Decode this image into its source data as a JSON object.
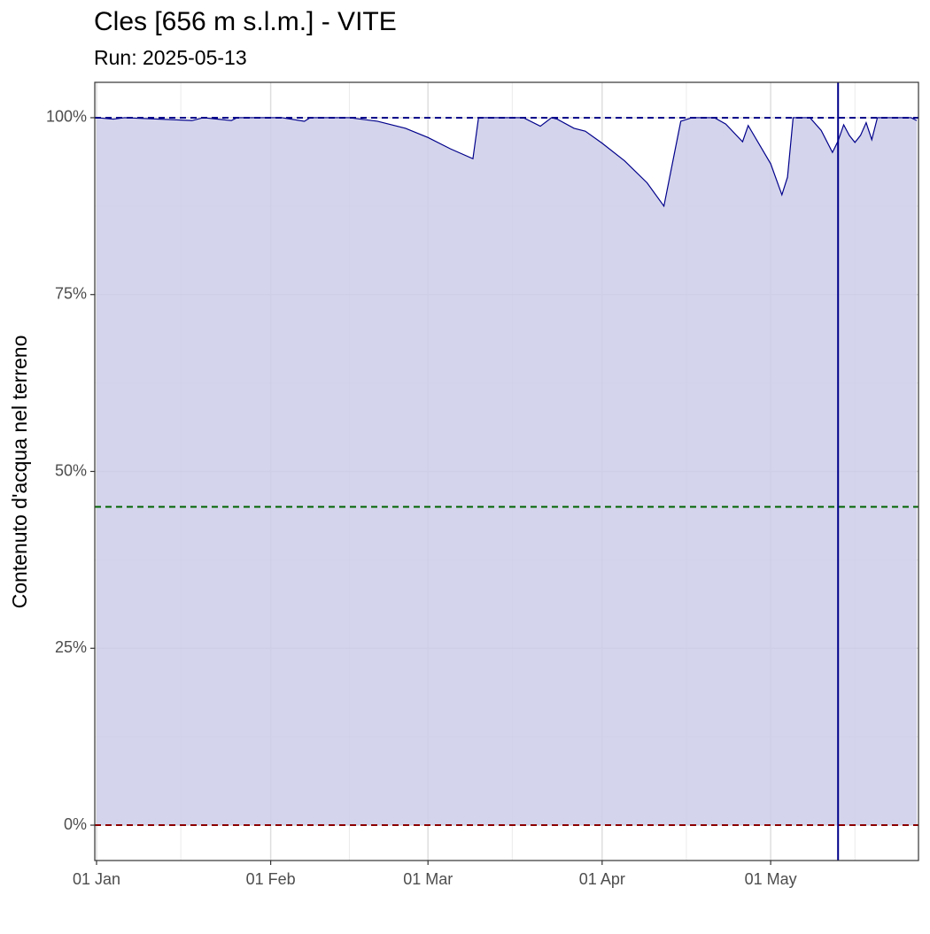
{
  "chart_data": {
    "type": "area",
    "title": "Cles [656 m s.l.m.] - VITE",
    "subtitle": "Run: 2025-05-13",
    "y_label": "Contenuto d'acqua nel terreno",
    "x": [
      "01 Jan",
      "04 Jan",
      "06 Jan",
      "18 Jan",
      "20 Jan",
      "25 Jan",
      "26 Jan",
      "03 Feb",
      "07 Feb",
      "08 Feb",
      "15 Feb",
      "20 Feb",
      "25 Feb",
      "01 Mar",
      "05 Mar",
      "09 Mar",
      "10 Mar",
      "18 Mar",
      "21 Mar",
      "23 Mar",
      "24 Mar",
      "27 Mar",
      "29 Mar",
      "01 Apr",
      "05 Apr",
      "09 Apr",
      "12 Apr",
      "15 Apr",
      "17 Apr",
      "21 Apr",
      "23 Apr",
      "26 Apr",
      "27 Apr",
      "01 May",
      "03 May",
      "04 May",
      "05 May",
      "08 May",
      "10 May",
      "12 May",
      "13 May",
      "14 May",
      "15 May",
      "16 May",
      "17 May",
      "18 May",
      "19 May",
      "20 May",
      "26 May",
      "27 May"
    ],
    "series": [
      {
        "color": "#00008b",
        "fill": "#cccce9",
        "values": [
          100,
          99.8,
          100,
          99.6,
          100,
          99.6,
          100,
          100,
          99.5,
          100,
          100,
          99.5,
          98.5,
          97.2,
          95.6,
          94.2,
          100,
          100,
          98.8,
          100,
          99.8,
          98.5,
          98.1,
          96.4,
          93.9,
          90.8,
          87.5,
          99.5,
          100,
          100,
          99.1,
          96.6,
          98.9,
          93.5,
          89.1,
          91.6,
          100,
          100,
          98.2,
          95.1,
          96.7,
          99,
          97.5,
          96.5,
          97.5,
          99.3,
          96.9,
          100,
          100,
          99.6
        ]
      }
    ],
    "xlim": [
      "01 Jan",
      "27 May"
    ],
    "xticks": [
      "01 Jan",
      "01 Feb",
      "01 Mar",
      "01 Apr",
      "01 May"
    ],
    "x_minor_ticks": [
      "16 Jan",
      "15 Feb",
      "16 Mar",
      "16 Apr",
      "16 May"
    ],
    "ylim": [
      -5,
      105
    ],
    "yticks": [
      {
        "value": 0,
        "label": "0%"
      },
      {
        "value": 25,
        "label": "25%"
      },
      {
        "value": 50,
        "label": "50%"
      },
      {
        "value": 75,
        "label": "75%"
      },
      {
        "value": 100,
        "label": "100%"
      }
    ],
    "y_minor_ticks": [
      12.5,
      37.5,
      62.5,
      87.5
    ],
    "hlines": [
      {
        "value": 100,
        "color": "#00008b"
      },
      {
        "value": 45,
        "color": "#006400"
      },
      {
        "value": 0,
        "color": "#8b0000"
      }
    ],
    "vline": {
      "x": "13 May",
      "color": "#00008b"
    },
    "grid": true
  }
}
